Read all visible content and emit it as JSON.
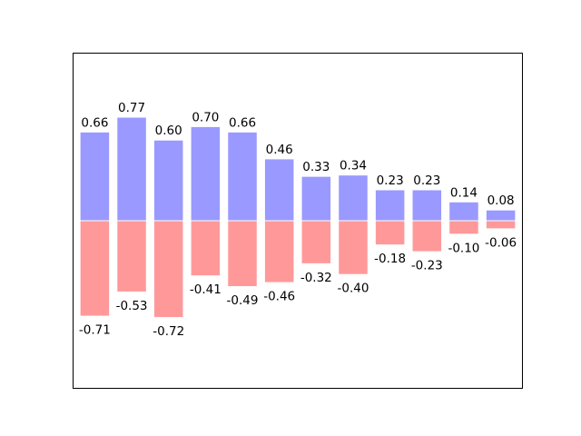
{
  "chart_data": {
    "type": "bar",
    "title": "",
    "xlabel": "",
    "ylabel": "",
    "ylim": [
      -1.25,
      1.25
    ],
    "xlim": [
      -0.6,
      11.6
    ],
    "axes_visible": false,
    "grid": false,
    "x": [
      0,
      1,
      2,
      3,
      4,
      5,
      6,
      7,
      8,
      9,
      10,
      11
    ],
    "series": [
      {
        "color": "#9999ff",
        "values": [
          0.66,
          0.77,
          0.6,
          0.7,
          0.66,
          0.46,
          0.33,
          0.34,
          0.23,
          0.23,
          0.14,
          0.08
        ],
        "labels": [
          "0.66",
          "0.77",
          "0.60",
          "0.70",
          "0.66",
          "0.46",
          "0.33",
          "0.34",
          "0.23",
          "0.23",
          "0.14",
          "0.08"
        ]
      },
      {
        "color": "#ff9999",
        "values": [
          -0.71,
          -0.53,
          -0.72,
          -0.41,
          -0.49,
          -0.46,
          -0.32,
          -0.4,
          -0.18,
          -0.23,
          -0.1,
          -0.06
        ],
        "labels": [
          "-0.71",
          "-0.53",
          "-0.72",
          "-0.41",
          "-0.49",
          "-0.46",
          "-0.32",
          "-0.40",
          "-0.18",
          "-0.23",
          "-0.10",
          "-0.06"
        ]
      }
    ],
    "bar_edge_color": "#ffffff"
  }
}
